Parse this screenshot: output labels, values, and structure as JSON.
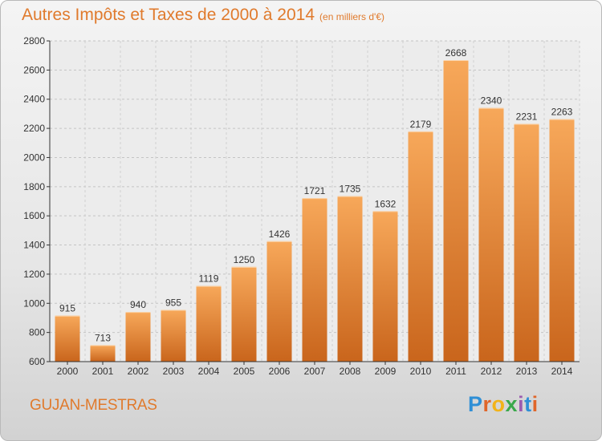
{
  "title": "Autres Impôts et Taxes de 2000 à 2014",
  "subtitle": "(en milliers d'€)",
  "location": "GUJAN-MESTRAS",
  "logo": {
    "letters": [
      "P",
      "r",
      "o",
      "x",
      "i",
      "t",
      "i"
    ],
    "colors": [
      "#2f8fd6",
      "#e0662a",
      "#f2b31a",
      "#3aa84b",
      "#9c5bb0",
      "#2f8fd6",
      "#e0662a"
    ]
  },
  "colors": {
    "title": "#e07a2c",
    "bar_top": "#f7a85a",
    "bar_bottom": "#c9651c",
    "axis": "#333333"
  },
  "chart_data": {
    "type": "bar",
    "title": "Autres Impôts et Taxes de 2000 à 2014",
    "subtitle": "(en milliers d'€)",
    "categories": [
      "2000",
      "2001",
      "2002",
      "2003",
      "2004",
      "2005",
      "2006",
      "2007",
      "2008",
      "2009",
      "2010",
      "2011",
      "2012",
      "2013",
      "2014"
    ],
    "values": [
      915,
      713,
      940,
      955,
      1119,
      1250,
      1426,
      1721,
      1735,
      1632,
      2179,
      2668,
      2340,
      2231,
      2263
    ],
    "ylim": [
      600,
      2800
    ],
    "yticks": [
      600,
      800,
      1000,
      1200,
      1400,
      1600,
      1800,
      2000,
      2200,
      2400,
      2600,
      2800
    ],
    "grid": true,
    "legend": "none",
    "data_labels": true
  }
}
